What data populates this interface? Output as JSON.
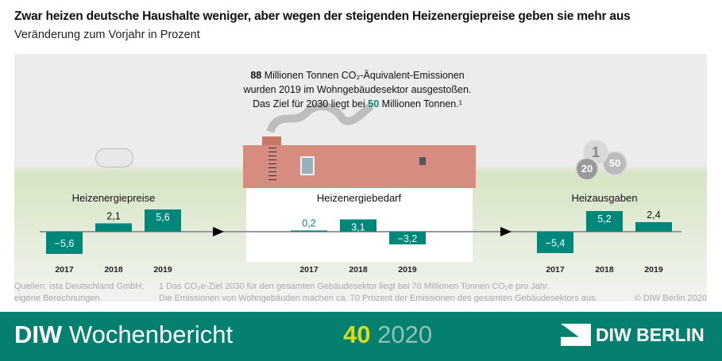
{
  "title": "Zwar heizen deutsche Haushalte weniger, aber wegen der steigenden Heizenergiepreise geben sie mehr aus",
  "subtitle": "Veränderung zum Vorjahr in Prozent",
  "note": {
    "pre": "88",
    "l1": " Millionen Tonnen CO₂-Äquivalent-Emissionen",
    "l2": "wurden 2019 im Wohngebäudesektor ausgestoßen.",
    "l3a": "Das Ziel für 2030 liegt bei ",
    "l3b": "50",
    "l3c": " Millionen Tonnen.¹"
  },
  "chart_data": [
    {
      "type": "bar",
      "title": "Heizenergiepreise",
      "categories": [
        "2017",
        "2018",
        "2019"
      ],
      "values": [
        -5.6,
        2.1,
        5.6
      ],
      "labels": [
        "−5,6",
        "2,1",
        "5,6"
      ]
    },
    {
      "type": "bar",
      "title": "Heizenergiebedarf",
      "categories": [
        "2017",
        "2018",
        "2019"
      ],
      "values": [
        0.2,
        3.1,
        -3.2
      ],
      "labels": [
        "0,2",
        "3,1",
        "−3,2"
      ]
    },
    {
      "type": "bar",
      "title": "Heizausgaben",
      "categories": [
        "2017",
        "2018",
        "2019"
      ],
      "values": [
        -5.4,
        5.2,
        2.4
      ],
      "labels": [
        "−5,4",
        "5,2",
        "2,4"
      ]
    }
  ],
  "colors": {
    "bar": "#00877a",
    "band": "#05806f",
    "accent_yellow": "#d7dc1e"
  },
  "coins": [
    "1",
    "20",
    "50"
  ],
  "footer": {
    "source1": "Quellen: ista Deutschland GmbH;",
    "source2": "eigene Berechnungen.",
    "fn1": "1  Das CO₂e-Ziel 2030 für den gesamten Gebäudesektor liegt bei 70 Millionen Tonnen CO₂e pro Jahr.",
    "fn2": "Die Emissionen von Wohngebäuden machen ca. 70 Prozent der Emissionen des gesamten Gebäudesektors aus.",
    "copyright": "© DIW Berlin 2020"
  },
  "band": {
    "diw": "DIW",
    "pub": " Wochenbericht",
    "issue": "40",
    "year": " 2020",
    "logo": "DIW BERLIN"
  }
}
